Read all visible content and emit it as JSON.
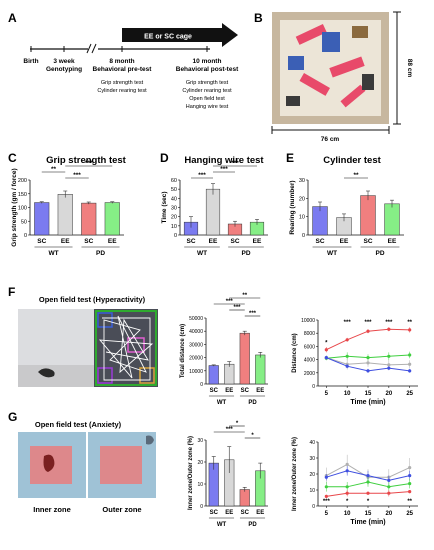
{
  "panels": {
    "A": "A",
    "B": "B",
    "C": "C",
    "D": "D",
    "E": "E",
    "F": "F",
    "G": "G"
  },
  "timeline": {
    "cage_label": "EE or SC cage",
    "events": [
      {
        "title": "Birth",
        "sub": ""
      },
      {
        "title": "3 week",
        "sub": "Genotyping"
      },
      {
        "title": "8 month",
        "sub": "Behavioral pre-test"
      },
      {
        "title": "10 month",
        "sub": "Behavioral post-test"
      }
    ],
    "pre_tests": [
      "Grip strength test",
      "Cylinder rearing test"
    ],
    "post_tests": [
      "Grip strength test",
      "Cylinder rearing test",
      "Open field test",
      "Hanging wire test"
    ]
  },
  "cage": {
    "height_label": "88 cm",
    "width_label": "76 cm"
  },
  "groups": {
    "labels": [
      "SC",
      "EE",
      "SC",
      "EE"
    ],
    "genotypes": [
      "WT",
      "PD"
    ]
  },
  "colors": {
    "wt_sc": "#7b7bf0",
    "wt_ee": "#d8d8d8",
    "pd_sc": "#f07f7f",
    "pd_ee": "#86ee86",
    "red": "#e8474a",
    "green": "#3fcf3f",
    "blue": "#3f4fe0",
    "gray": "#b0b0b0"
  },
  "chart_data": [
    {
      "id": "C",
      "type": "bar",
      "title": "Grip strength test",
      "ylabel": "Grip strength (gm / force)",
      "ylim": [
        0,
        200
      ],
      "yticks": [
        0,
        50,
        100,
        150,
        200
      ],
      "categories": [
        "SC",
        "EE",
        "SC",
        "EE"
      ],
      "values": [
        118,
        148,
        116,
        118
      ],
      "errors": [
        3,
        12,
        4,
        3
      ],
      "sig": [
        {
          "label": "**",
          "from": 0,
          "to": 1,
          "level": 1
        },
        {
          "label": "***",
          "from": 1,
          "to": 2,
          "level": 0
        },
        {
          "label": "***",
          "from": 1,
          "to": 3,
          "level": 2
        }
      ]
    },
    {
      "id": "D",
      "type": "bar",
      "title": "Hanging wire test",
      "ylabel": "Time (sec)",
      "ylim": [
        0,
        60
      ],
      "yticks": [
        0,
        10,
        20,
        30,
        40,
        50,
        60
      ],
      "categories": [
        "SC",
        "EE",
        "SC",
        "EE"
      ],
      "values": [
        14,
        50,
        12,
        14
      ],
      "errors": [
        6,
        6,
        3,
        3
      ],
      "sig": [
        {
          "label": "***",
          "from": 0,
          "to": 1,
          "level": 0
        },
        {
          "label": "***",
          "from": 1,
          "to": 2,
          "level": 1
        },
        {
          "label": "***",
          "from": 1,
          "to": 3,
          "level": 2
        }
      ]
    },
    {
      "id": "E",
      "type": "bar",
      "title": "Cylinder test",
      "ylabel": "Rearing (number)",
      "ylim": [
        0,
        30
      ],
      "yticks": [
        0,
        10,
        20,
        30
      ],
      "categories": [
        "SC",
        "EE",
        "SC",
        "EE"
      ],
      "values": [
        15.5,
        9.5,
        21.5,
        17
      ],
      "errors": [
        2.5,
        2,
        2.5,
        2
      ],
      "sig": [
        {
          "label": "**",
          "from": 1,
          "to": 2,
          "level": 0
        }
      ]
    },
    {
      "id": "F-bar",
      "type": "bar",
      "title": "",
      "ylabel": "Total distance (cm)",
      "ylim": [
        0,
        50000
      ],
      "yticks": [
        0,
        10000,
        20000,
        30000,
        40000,
        50000
      ],
      "categories": [
        "SC",
        "EE",
        "SC",
        "EE"
      ],
      "values": [
        14000,
        15000,
        38500,
        22000
      ],
      "errors": [
        500,
        2000,
        1500,
        2000
      ],
      "sig": [
        {
          "label": "***",
          "from": 2,
          "to": 3,
          "level": 0
        },
        {
          "label": "***",
          "from": 1,
          "to": 2,
          "level": 1
        },
        {
          "label": "***",
          "from": 0,
          "to": 2,
          "level": 2
        },
        {
          "label": "**",
          "from": 1,
          "to": 3,
          "level": 3
        }
      ]
    },
    {
      "id": "F-line",
      "type": "line",
      "title": "",
      "xlabel": "Time (min)",
      "ylabel": "Distance (cm)",
      "x": [
        5,
        10,
        15,
        20,
        25
      ],
      "xticks": [
        5,
        10,
        15,
        20,
        25
      ],
      "ylim": [
        0,
        10000
      ],
      "yticks": [
        0,
        2000,
        4000,
        6000,
        8000,
        10000
      ],
      "series": [
        {
          "color": "#e8474a",
          "values": [
            5500,
            7000,
            8300,
            8600,
            8500
          ],
          "errors": [
            400,
            300,
            300,
            300,
            400
          ]
        },
        {
          "color": "#3fcf3f",
          "values": [
            4200,
            4500,
            4300,
            4500,
            4700
          ],
          "errors": [
            300,
            600,
            500,
            600,
            500
          ]
        },
        {
          "color": "#b0b0b0",
          "values": [
            4300,
            3300,
            3500,
            3200,
            3300
          ],
          "errors": [
            300,
            800,
            600,
            700,
            600
          ]
        },
        {
          "color": "#3f4fe0",
          "values": [
            4300,
            3000,
            2300,
            2700,
            2300
          ],
          "errors": [
            300,
            300,
            300,
            300,
            300
          ]
        }
      ],
      "annotations": [
        "*",
        "***",
        "***",
        "***",
        "**"
      ]
    },
    {
      "id": "G-bar",
      "type": "bar",
      "title": "",
      "ylabel": "Inner zone/Outer zone (%)",
      "ylim": [
        0,
        30
      ],
      "yticks": [
        0,
        10,
        20,
        30
      ],
      "categories": [
        "SC",
        "EE",
        "SC",
        "EE"
      ],
      "values": [
        19.5,
        21,
        7.5,
        16
      ],
      "errors": [
        3,
        6,
        1,
        3.5
      ],
      "sig": [
        {
          "label": "*",
          "from": 2,
          "to": 3,
          "level": 0
        },
        {
          "label": "***",
          "from": 0,
          "to": 2,
          "level": 1
        },
        {
          "label": "*",
          "from": 1,
          "to": 2,
          "level": 2
        }
      ]
    },
    {
      "id": "G-line",
      "type": "line",
      "title": "",
      "xlabel": "Time (min)",
      "ylabel": "Inner zone/Outer zone (%)",
      "x": [
        5,
        10,
        15,
        20,
        25
      ],
      "xticks": [
        5,
        10,
        15,
        20,
        25
      ],
      "ylim": [
        0,
        40
      ],
      "yticks": [
        0,
        10,
        20,
        30,
        40
      ],
      "series": [
        {
          "color": "#b0b0b0",
          "values": [
            19,
            26,
            18,
            18,
            24
          ],
          "errors": [
            5,
            6,
            5,
            5,
            6
          ]
        },
        {
          "color": "#3f4fe0",
          "values": [
            18,
            22,
            19,
            16,
            19
          ],
          "errors": [
            2,
            3,
            3,
            3,
            3
          ]
        },
        {
          "color": "#3fcf3f",
          "values": [
            12,
            12,
            15,
            12,
            14
          ],
          "errors": [
            3,
            3,
            3,
            3,
            3
          ]
        },
        {
          "color": "#e8474a",
          "values": [
            6,
            8,
            8,
            8,
            9
          ],
          "errors": [
            1,
            2,
            1,
            2,
            1
          ]
        }
      ],
      "annotations": [
        "***",
        "*",
        "*",
        "",
        "**"
      ]
    }
  ],
  "open_field": {
    "title_f": "Open field test (Hyperactivity)",
    "title_g": "Open field test (Anxiety)",
    "inner": "Inner zone",
    "outer": "Outer zone"
  }
}
